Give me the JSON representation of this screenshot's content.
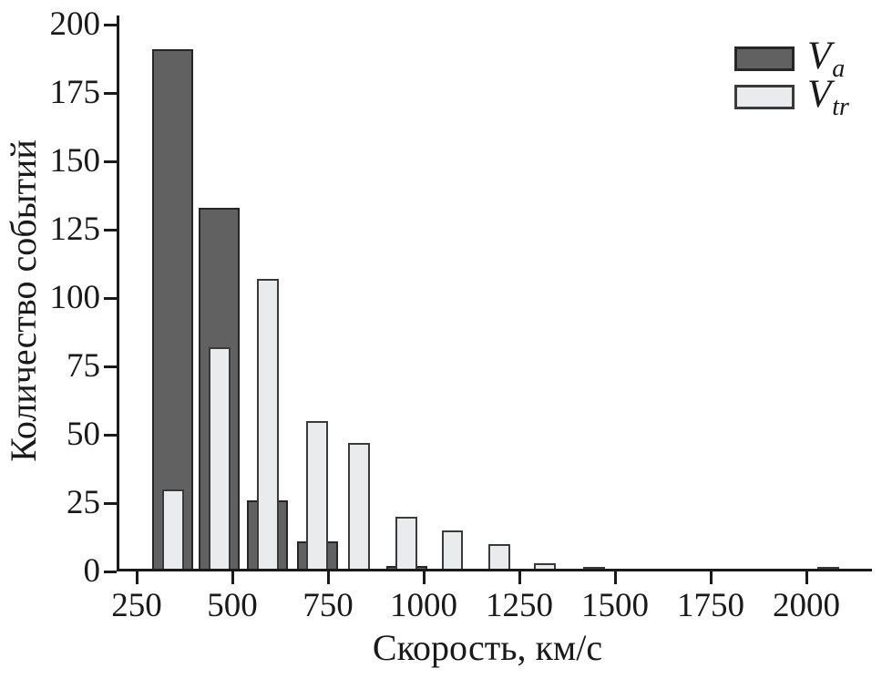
{
  "chart_data": {
    "type": "bar",
    "subtype": "overlaid-histogram",
    "title": "",
    "xlabel": "Скорость, км/с",
    "ylabel": "Количество событий",
    "xlim": [
      200,
      2175
    ],
    "ylim": [
      0,
      200
    ],
    "x_ticks": [
      250,
      500,
      750,
      1000,
      1250,
      1500,
      1750,
      2000
    ],
    "y_ticks": [
      0,
      25,
      50,
      75,
      100,
      125,
      150,
      175,
      200
    ],
    "x_unit": "км/с",
    "grid": false,
    "legend_position": "top-right",
    "bin_centers_kms": [
      345,
      466,
      592,
      722,
      830,
      955,
      1075,
      1197,
      1317,
      1445,
      2058
    ],
    "series": [
      {
        "name": "V_a",
        "symbol": "V",
        "subscript": "a",
        "fill": "#616161",
        "stroke": "#262626",
        "bar_width_kms": 107,
        "values": [
          191,
          133,
          26,
          11,
          0,
          2,
          0,
          0,
          0,
          0,
          0
        ]
      },
      {
        "name": "V_tr",
        "symbol": "V",
        "subscript": "tr",
        "fill": "#eaebec",
        "stroke": "#3a3a3a",
        "bar_width_kms": 57,
        "values": [
          30,
          82,
          107,
          55,
          47,
          20,
          15,
          10,
          3,
          1,
          1
        ]
      }
    ],
    "axis_color": "#1a1a1a",
    "background_color": "#ffffff"
  }
}
